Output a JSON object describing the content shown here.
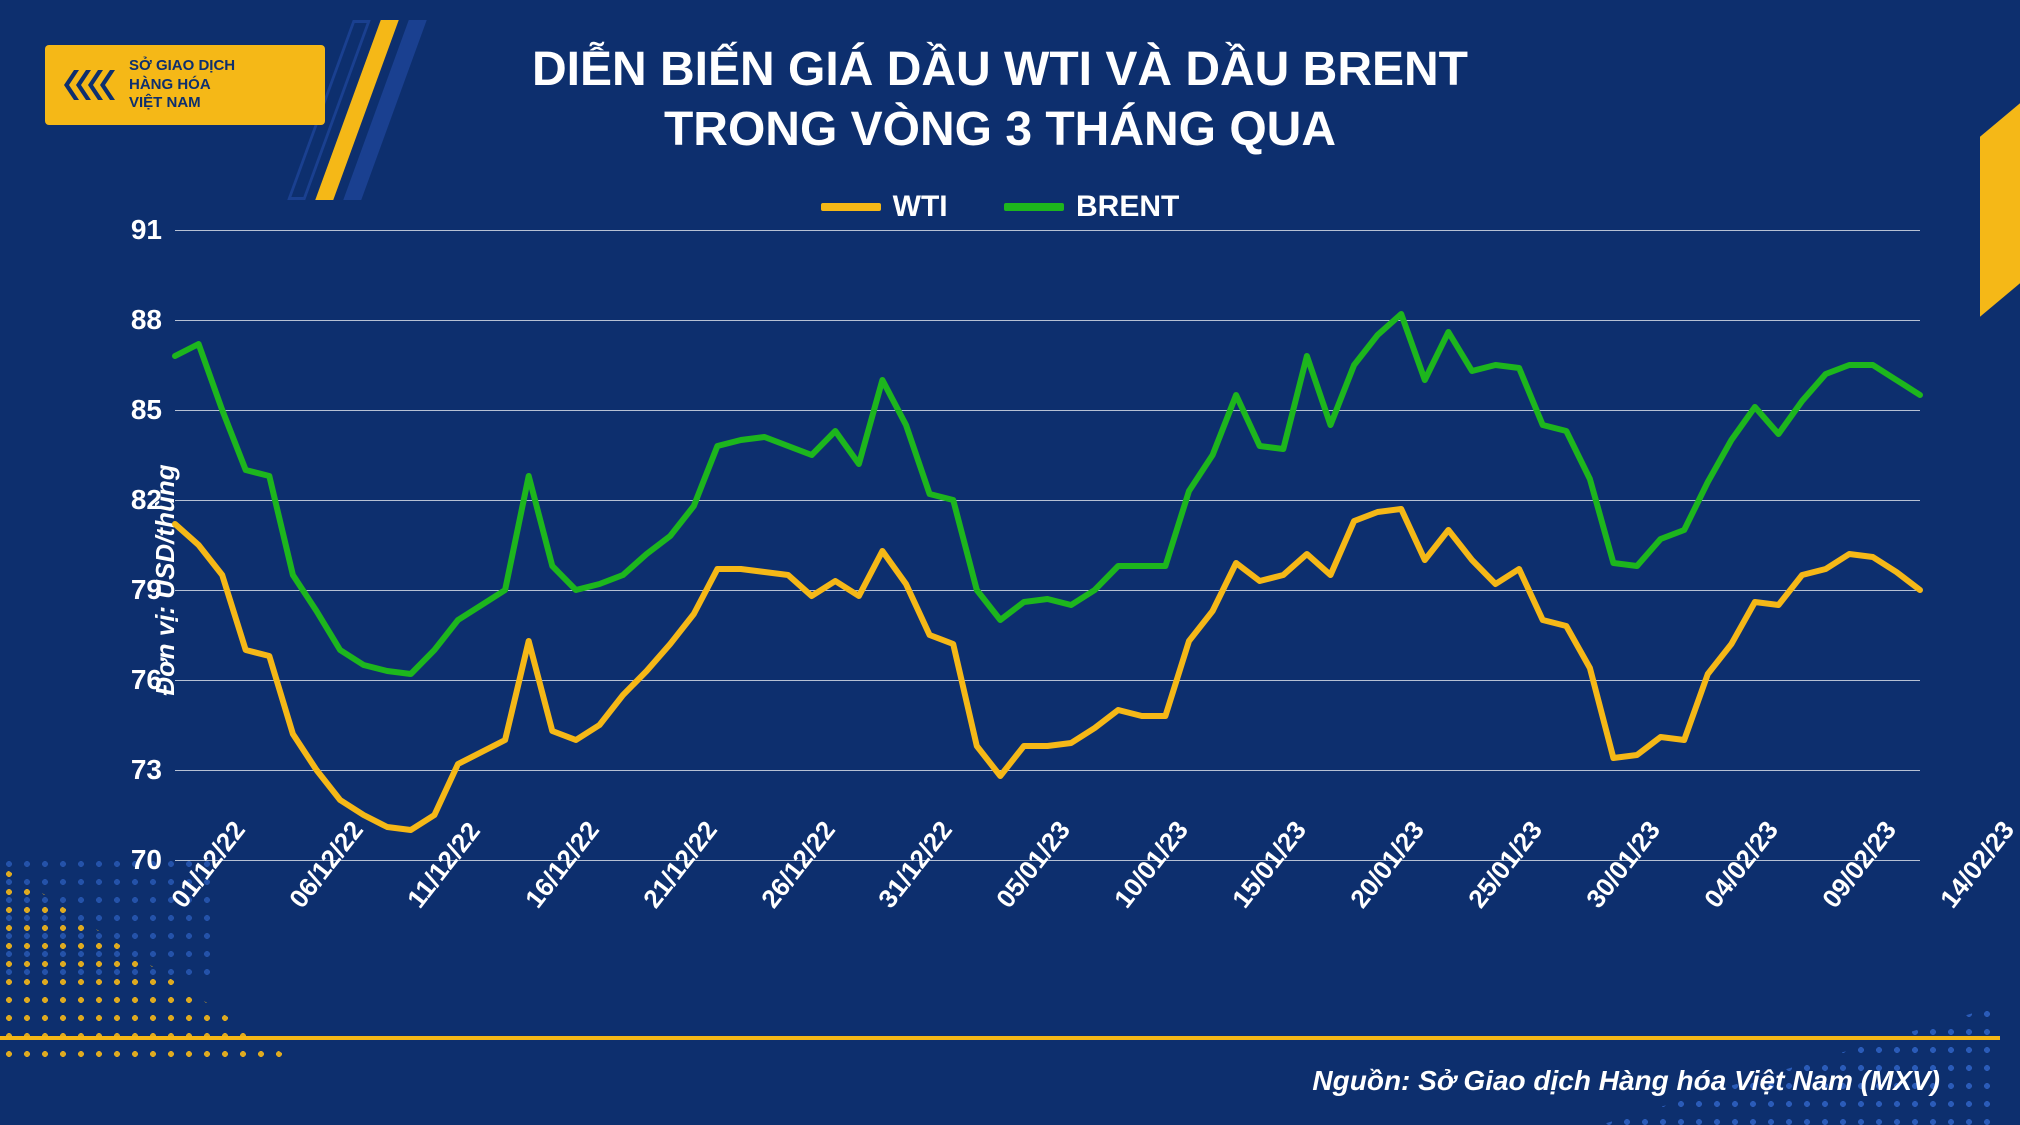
{
  "logo": {
    "line1": "SỞ GIAO DỊCH",
    "line2": "HÀNG HÓA",
    "line3": "VIỆT NAM",
    "mark_color": "#0d2f6e",
    "bg_color": "#f5b817"
  },
  "title": {
    "line1": "DIỄN BIẾN GIÁ DẦU WTI VÀ DẦU BRENT",
    "line2": "TRONG VÒNG 3 THÁNG QUA",
    "color": "#ffffff",
    "fontsize": 48
  },
  "legend": {
    "items": [
      {
        "label": "WTI",
        "color": "#f5b817"
      },
      {
        "label": "BRENT",
        "color": "#1db61d"
      }
    ],
    "fontsize": 30
  },
  "chart": {
    "type": "line",
    "ylabel": "Đơn vị: USD/thùng",
    "ylim": [
      70,
      91
    ],
    "ytick_step": 3,
    "yticks": [
      70,
      73,
      76,
      79,
      82,
      85,
      88,
      91
    ],
    "grid_color": "#ffffff",
    "background_color": "#0d2f6e",
    "line_width": 6,
    "label_fontsize": 26,
    "tick_fontsize": 28,
    "x_labels": [
      "01/12/22",
      "06/12/22",
      "11/12/22",
      "16/12/22",
      "21/12/22",
      "26/12/22",
      "31/12/22",
      "05/01/23",
      "10/01/23",
      "15/01/23",
      "20/01/23",
      "25/01/23",
      "30/01/23",
      "04/02/23",
      "09/02/23",
      "14/02/23"
    ],
    "x_label_step_days": 5,
    "series": {
      "wti": {
        "color": "#f5b817",
        "data": [
          81.2,
          80.5,
          79.5,
          77.0,
          76.8,
          74.2,
          73.0,
          72.0,
          71.5,
          71.1,
          71.0,
          71.5,
          73.2,
          73.6,
          74.0,
          77.3,
          74.3,
          74.0,
          74.5,
          75.5,
          76.3,
          77.2,
          78.2,
          79.7,
          79.7,
          79.6,
          79.5,
          78.8,
          79.3,
          78.8,
          80.3,
          79.2,
          77.5,
          77.2,
          73.8,
          72.8,
          73.8,
          73.8,
          73.9,
          74.4,
          75.0,
          74.8,
          74.8,
          77.3,
          78.3,
          79.9,
          79.3,
          79.5,
          80.2,
          79.5,
          81.3,
          81.6,
          81.7,
          80.0,
          81.0,
          80.0,
          79.2,
          79.7,
          78.0,
          77.8,
          76.4,
          73.4,
          73.5,
          74.1,
          74.0,
          76.2,
          77.2,
          78.6,
          78.5,
          79.5,
          79.7,
          80.2,
          80.1,
          79.6,
          79.0
        ]
      },
      "brent": {
        "color": "#1db61d",
        "data": [
          86.8,
          87.2,
          85.0,
          83.0,
          82.8,
          79.5,
          78.3,
          77.0,
          76.5,
          76.3,
          76.2,
          77.0,
          78.0,
          78.5,
          79.0,
          82.8,
          79.8,
          79.0,
          79.2,
          79.5,
          80.2,
          80.8,
          81.8,
          83.8,
          84.0,
          84.1,
          83.8,
          83.5,
          84.3,
          83.2,
          86.0,
          84.5,
          82.2,
          82.0,
          79.0,
          78.0,
          78.6,
          78.7,
          78.5,
          79.0,
          79.8,
          79.8,
          79.8,
          82.3,
          83.5,
          85.5,
          83.8,
          83.7,
          86.8,
          84.5,
          86.5,
          87.5,
          88.2,
          86.0,
          87.6,
          86.3,
          86.5,
          86.4,
          84.5,
          84.3,
          82.7,
          79.9,
          79.8,
          80.7,
          81.0,
          82.6,
          84.0,
          85.1,
          84.2,
          85.3,
          86.2,
          86.5,
          86.5,
          86.0,
          85.5
        ]
      }
    }
  },
  "source": "Nguồn: Sở Giao dịch Hàng hóa Việt Nam (MXV)",
  "decor": {
    "accent_yellow": "#f5b817",
    "accent_blue": "#1a4090",
    "dot_yellow": "#f5b817",
    "dot_blue": "#2a5bb8"
  }
}
